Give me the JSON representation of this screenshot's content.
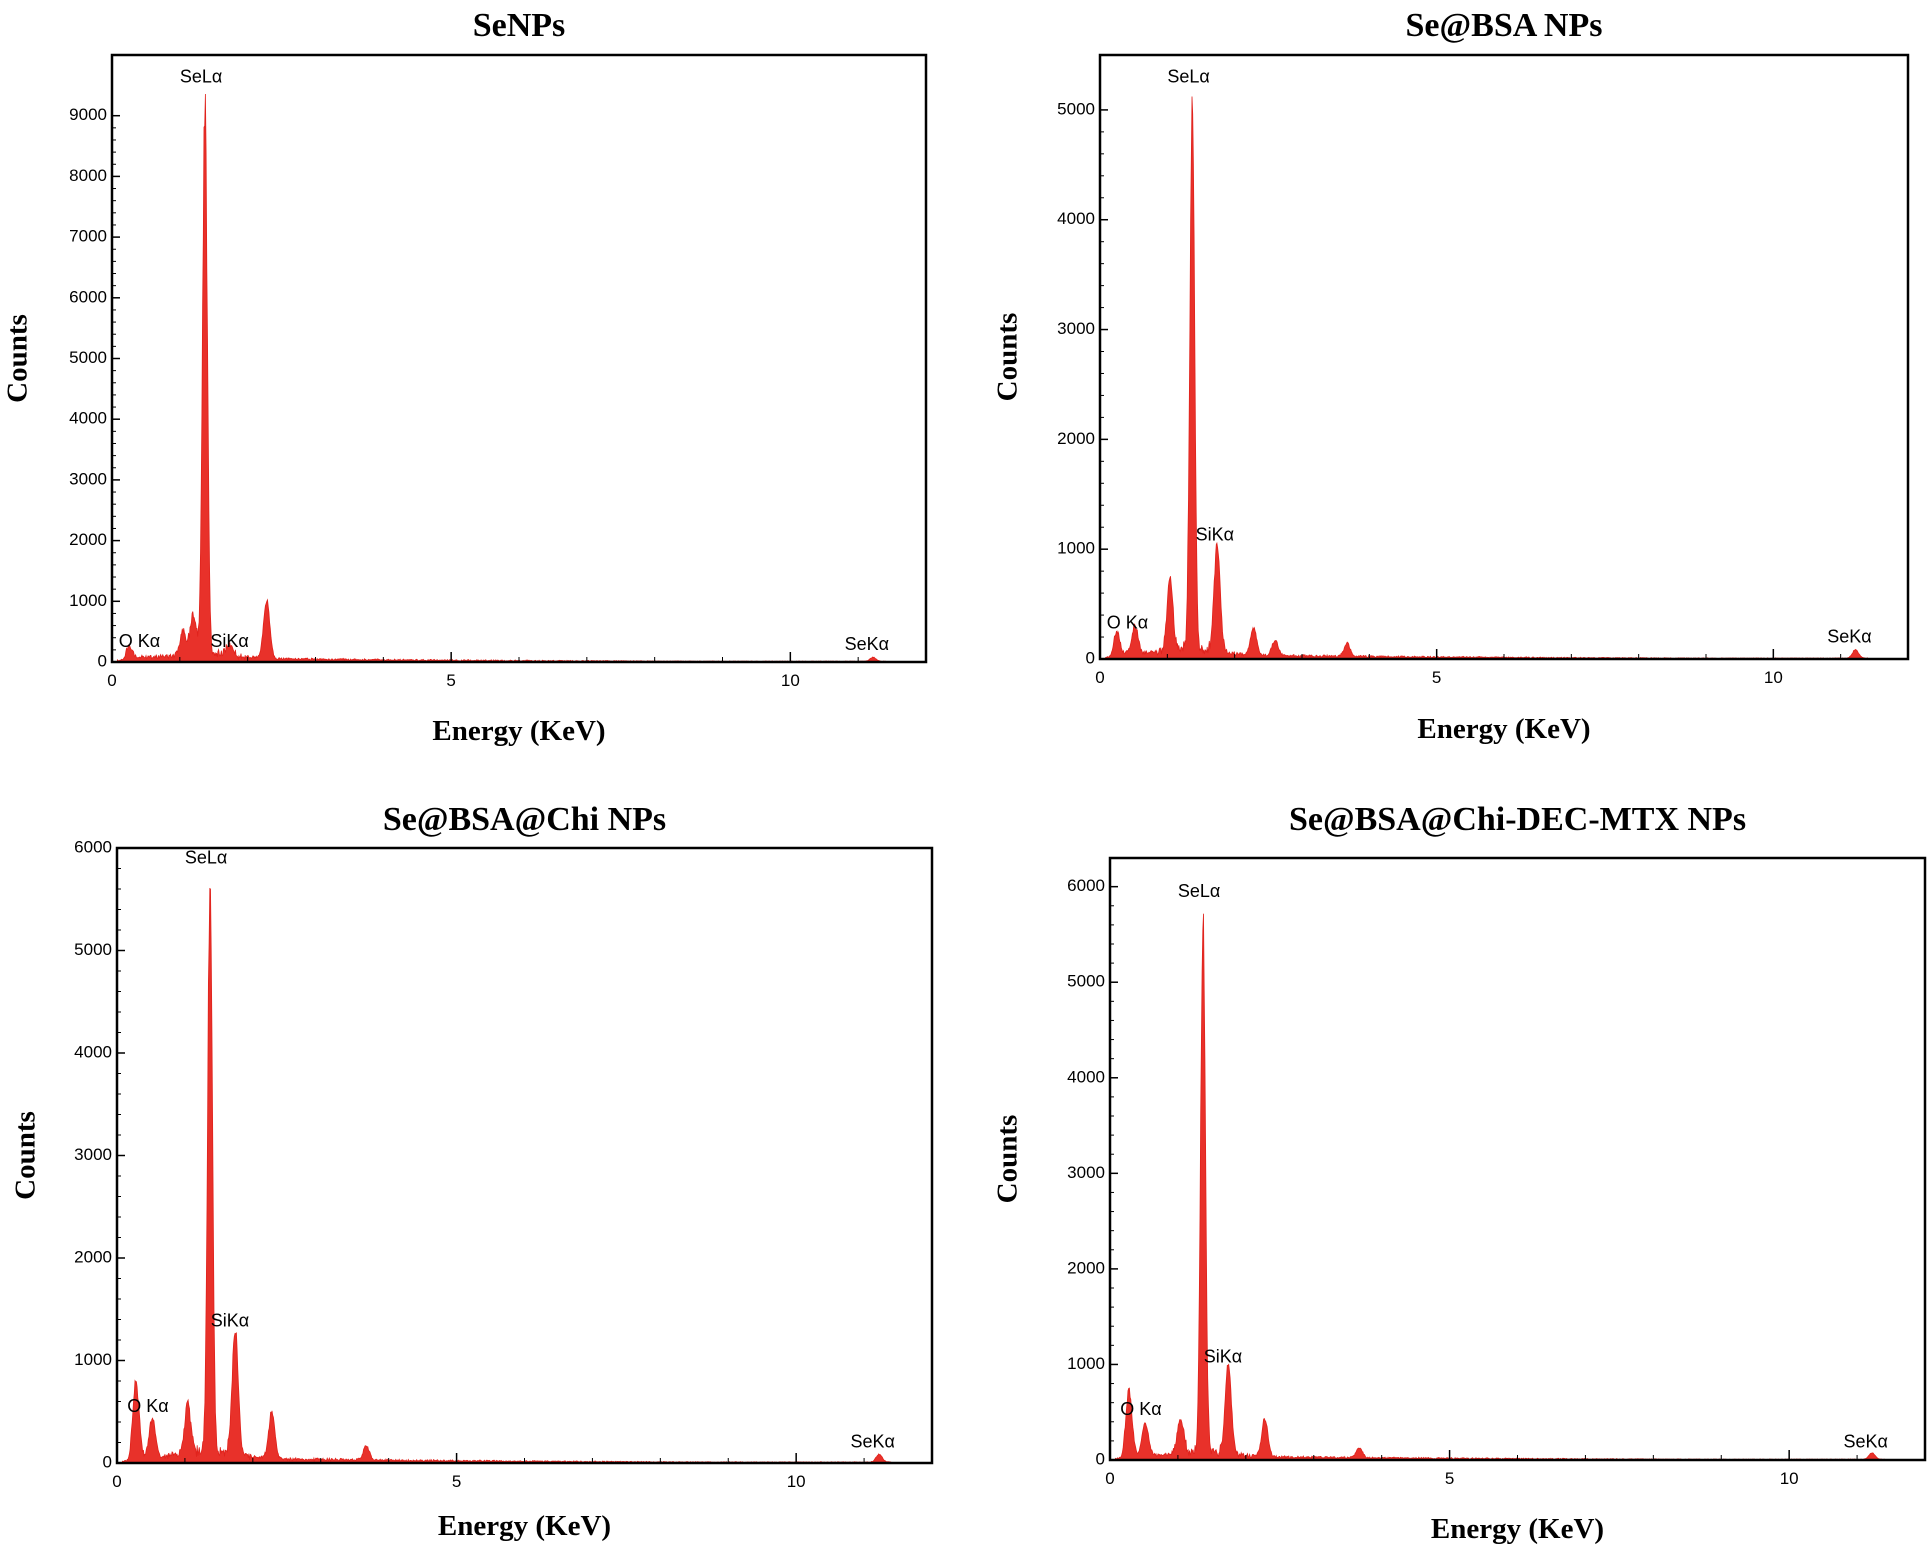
{
  "figure": {
    "colors": {
      "spectrum": "#e8312a",
      "axis": "#000000",
      "background": "#ffffff"
    }
  },
  "chart_data": [
    {
      "type": "area",
      "title": "SeNPs",
      "xlabel": "Energy (KeV)",
      "ylabel": "Counts",
      "xlim": [
        0,
        12
      ],
      "ylim": [
        0,
        10000
      ],
      "xticks": [
        0,
        5,
        10
      ],
      "yticks": [
        0,
        1000,
        2000,
        3000,
        4000,
        5000,
        6000,
        7000,
        8000,
        9000
      ],
      "xtick_labels": [
        "0",
        "5",
        "10"
      ],
      "ytick_labels": [
        "0",
        "1000",
        "2000",
        "3000",
        "4000",
        "5000",
        "6000",
        "7000",
        "8000",
        "9000"
      ],
      "baseline": 80,
      "peaks": [
        {
          "label": "O Kα",
          "energy": 0.25,
          "counts": 180,
          "label_at": [
            0.1,
            250
          ]
        },
        {
          "label": "",
          "energy": 1.05,
          "counts": 420,
          "label_at": null
        },
        {
          "label": "",
          "energy": 1.2,
          "counts": 700,
          "label_at": null
        },
        {
          "label": "SeLα",
          "energy": 1.37,
          "counts": 9400,
          "label_at": [
            1.0,
            9550
          ]
        },
        {
          "label": "SiKα",
          "energy": 1.74,
          "counts": 200,
          "label_at": [
            1.45,
            250
          ]
        },
        {
          "label": "",
          "energy": 2.28,
          "counts": 1000,
          "label_at": null
        },
        {
          "label": "SeKα",
          "energy": 11.22,
          "counts": 70,
          "label_at": [
            10.8,
            200
          ]
        }
      ]
    },
    {
      "type": "area",
      "title": "Se@BSA NPs",
      "xlabel": "Energy (KeV)",
      "ylabel": "Counts",
      "xlim": [
        0,
        12
      ],
      "ylim": [
        0,
        5500
      ],
      "xticks": [
        0,
        5,
        10
      ],
      "yticks": [
        0,
        1000,
        2000,
        3000,
        4000,
        5000
      ],
      "xtick_labels": [
        "0",
        "5",
        "10"
      ],
      "ytick_labels": [
        "0",
        "1000",
        "2000",
        "3000",
        "4000",
        "5000"
      ],
      "baseline": 50,
      "peaks": [
        {
          "label": "O Kα",
          "energy": 0.25,
          "counts": 200,
          "label_at": [
            0.1,
            280
          ]
        },
        {
          "label": "",
          "energy": 0.52,
          "counts": 260,
          "label_at": null
        },
        {
          "label": "",
          "energy": 1.04,
          "counts": 680,
          "label_at": null
        },
        {
          "label": "SeLα",
          "energy": 1.37,
          "counts": 5150,
          "label_at": [
            1.0,
            5250
          ]
        },
        {
          "label": "SiKα",
          "energy": 1.74,
          "counts": 1030,
          "label_at": [
            1.42,
            1080
          ]
        },
        {
          "label": "",
          "energy": 2.28,
          "counts": 260,
          "label_at": null
        },
        {
          "label": "",
          "energy": 2.6,
          "counts": 150,
          "label_at": null
        },
        {
          "label": "",
          "energy": 3.67,
          "counts": 120,
          "label_at": null
        },
        {
          "label": "SeKα",
          "energy": 11.22,
          "counts": 80,
          "label_at": [
            10.8,
            150
          ]
        }
      ]
    },
    {
      "type": "area",
      "title": "Se@BSA@Chi NPs",
      "xlabel": "Energy (KeV)",
      "ylabel": "Counts",
      "xlim": [
        0,
        12
      ],
      "ylim": [
        0,
        6000
      ],
      "xticks": [
        0,
        5,
        10
      ],
      "yticks": [
        0,
        1000,
        2000,
        3000,
        4000,
        5000,
        6000
      ],
      "xtick_labels": [
        "0",
        "5",
        "10"
      ],
      "ytick_labels": [
        "0",
        "1000",
        "2000",
        "3000",
        "4000",
        "5000",
        "6000"
      ],
      "baseline": 60,
      "peaks": [
        {
          "label": "O Kα",
          "energy": 0.28,
          "counts": 760,
          "label_at": [
            0.15,
            500
          ]
        },
        {
          "label": "",
          "energy": 0.52,
          "counts": 400,
          "label_at": null
        },
        {
          "label": "",
          "energy": 1.04,
          "counts": 520,
          "label_at": null
        },
        {
          "label": "SeLα",
          "energy": 1.37,
          "counts": 5780,
          "label_at": [
            1.0,
            5850
          ]
        },
        {
          "label": "SiKα",
          "energy": 1.74,
          "counts": 1280,
          "label_at": [
            1.38,
            1330
          ]
        },
        {
          "label": "",
          "energy": 2.28,
          "counts": 480,
          "label_at": null
        },
        {
          "label": "",
          "energy": 3.67,
          "counts": 140,
          "label_at": null
        },
        {
          "label": "SeKα",
          "energy": 11.22,
          "counts": 80,
          "label_at": [
            10.8,
            150
          ]
        }
      ]
    },
    {
      "type": "area",
      "title": "Se@BSA@Chi-DEC-MTX NPs",
      "xlabel": "Energy (KeV)",
      "ylabel": "Counts",
      "xlim": [
        0,
        12
      ],
      "ylim": [
        0,
        6300
      ],
      "xticks": [
        0,
        5,
        10
      ],
      "yticks": [
        0,
        1000,
        2000,
        3000,
        4000,
        5000,
        6000
      ],
      "xtick_labels": [
        "0",
        "5",
        "10"
      ],
      "ytick_labels": [
        "0",
        "1000",
        "2000",
        "3000",
        "4000",
        "5000",
        "6000"
      ],
      "baseline": 50,
      "peaks": [
        {
          "label": "O Kα",
          "energy": 0.28,
          "counts": 700,
          "label_at": [
            0.15,
            470
          ]
        },
        {
          "label": "",
          "energy": 0.52,
          "counts": 350,
          "label_at": null
        },
        {
          "label": "",
          "energy": 1.04,
          "counts": 380,
          "label_at": null
        },
        {
          "label": "SeLα",
          "energy": 1.37,
          "counts": 5780,
          "label_at": [
            1.0,
            5890
          ]
        },
        {
          "label": "SiKα",
          "energy": 1.74,
          "counts": 970,
          "label_at": [
            1.38,
            1020
          ]
        },
        {
          "label": "",
          "energy": 2.28,
          "counts": 420,
          "label_at": null
        },
        {
          "label": "",
          "energy": 3.67,
          "counts": 110,
          "label_at": null
        },
        {
          "label": "SeKα",
          "energy": 11.22,
          "counts": 70,
          "label_at": [
            10.8,
            130
          ]
        }
      ]
    }
  ]
}
